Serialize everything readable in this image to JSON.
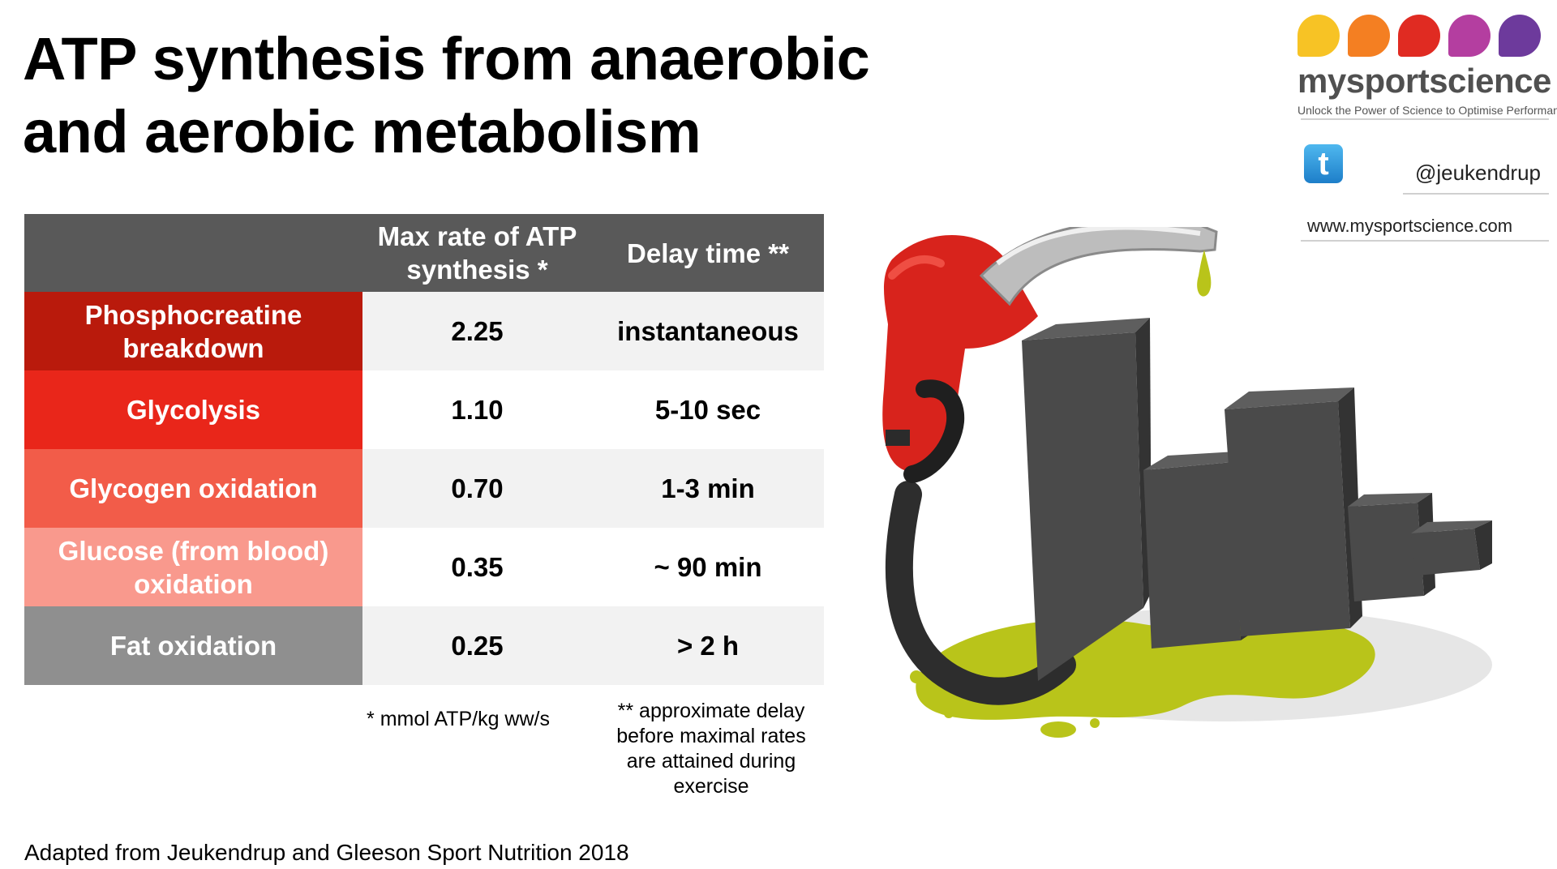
{
  "title_line1": "ATP synthesis from anaerobic",
  "title_line2": "and aerobic metabolism",
  "table": {
    "header": {
      "col1": "",
      "col2_line1": "Max rate of ATP",
      "col2_line2": "synthesis *",
      "col3": "Delay time **"
    },
    "rows": [
      {
        "label_line1": "Phosphocreatine",
        "label_line2": "breakdown",
        "rate": "2.25",
        "delay": "instantaneous",
        "color": "#b91a0c"
      },
      {
        "label_line1": "Glycolysis",
        "label_line2": "",
        "rate": "1.10",
        "delay": "5-10 sec",
        "color": "#e9261a"
      },
      {
        "label_line1": "Glycogen oxidation",
        "label_line2": "",
        "rate": "0.70",
        "delay": "1-3 min",
        "color": "#f25c49"
      },
      {
        "label_line1": "Glucose (from blood)",
        "label_line2": "oxidation",
        "rate": "0.35",
        "delay": "~ 90 min",
        "color": "#f9998d"
      },
      {
        "label_line1": "Fat oxidation",
        "label_line2": "",
        "rate": "0.25",
        "delay": "> 2 h",
        "color": "#8f8f8f"
      }
    ]
  },
  "notes": {
    "rate_unit": "* mmol ATP/kg ww/s",
    "delay_line1": "** approximate delay",
    "delay_line2": "before maximal rates",
    "delay_line3": "are attained during",
    "delay_line4": "exercise"
  },
  "source": "Adapted from Jeukendrup and Gleeson Sport Nutrition 2018",
  "logo": {
    "brand": "mysportscience",
    "tagline": "Unlock the Power of Science to Optimise Performance",
    "drop_colors": [
      "#f7c325",
      "#f47f22",
      "#e02b22",
      "#b43ea0",
      "#6d3a9c"
    ]
  },
  "social": {
    "twitter_icon": "twitter-icon",
    "twitter_glyph": "t",
    "handle": "@jeukendrup"
  },
  "website": "www.mysportscience.com",
  "illustration": {
    "name": "fuel-pump-bar-chart-illustration",
    "colors": {
      "nozzle": "#d8231c",
      "bars": "#4a4a4a",
      "fuel": "#b9c41a"
    }
  }
}
